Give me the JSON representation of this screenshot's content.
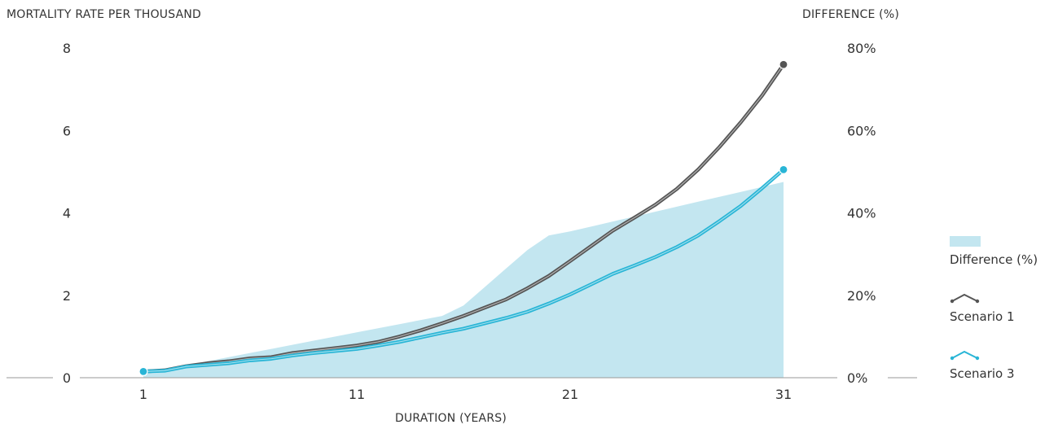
{
  "chart_data": {
    "type": "line",
    "title": "",
    "ylabel_left": "MORTALITY RATE PER THOUSAND",
    "ylabel_right": "DIFFERENCE (%)",
    "xlabel": "DURATION (YEARS)",
    "x": [
      1,
      2,
      3,
      4,
      5,
      6,
      7,
      8,
      9,
      10,
      11,
      12,
      13,
      14,
      15,
      16,
      17,
      18,
      19,
      20,
      21,
      22,
      23,
      24,
      25,
      26,
      27,
      28,
      29,
      30,
      31
    ],
    "xticks": [
      1,
      11,
      21,
      31
    ],
    "yticks_left": [
      0,
      2,
      4,
      6,
      8
    ],
    "yticks_left_labels": [
      "0",
      "2",
      "4",
      "6",
      "8"
    ],
    "yticks_right_labels": [
      "0%",
      "20%",
      "40%",
      "60%",
      "80%"
    ],
    "ylim_left": [
      0,
      8
    ],
    "ylim_right": [
      0,
      80
    ],
    "series": [
      {
        "name": "Difference (%)",
        "kind": "area",
        "axis": "right",
        "color": "#c3e6f0",
        "values": [
          1,
          2,
          3,
          4,
          5,
          6,
          7,
          8,
          9,
          10,
          11,
          12,
          13,
          14,
          15,
          17.5,
          22,
          26.5,
          31,
          34.5,
          35.5,
          36.7,
          37.9,
          39.1,
          40.3,
          41.5,
          42.7,
          43.9,
          45.1,
          46.3,
          47.5
        ]
      },
      {
        "name": "Scenario 1",
        "kind": "line",
        "axis": "left",
        "color": "#555555",
        "values": [
          0.15,
          0.18,
          0.28,
          0.35,
          0.4,
          0.47,
          0.5,
          0.6,
          0.66,
          0.72,
          0.78,
          0.87,
          1.0,
          1.15,
          1.32,
          1.5,
          1.7,
          1.9,
          2.17,
          2.47,
          2.83,
          3.2,
          3.57,
          3.88,
          4.2,
          4.58,
          5.05,
          5.6,
          6.2,
          6.85,
          7.6
        ]
      },
      {
        "name": "Scenario 3",
        "kind": "line",
        "axis": "left",
        "color": "#29b5d6",
        "values": [
          0.15,
          0.17,
          0.27,
          0.31,
          0.35,
          0.42,
          0.46,
          0.54,
          0.6,
          0.65,
          0.7,
          0.78,
          0.87,
          0.98,
          1.09,
          1.19,
          1.32,
          1.45,
          1.6,
          1.8,
          2.02,
          2.27,
          2.52,
          2.72,
          2.93,
          3.17,
          3.45,
          3.8,
          4.17,
          4.6,
          5.05
        ]
      }
    ],
    "legend_position": "right",
    "grid": false
  }
}
